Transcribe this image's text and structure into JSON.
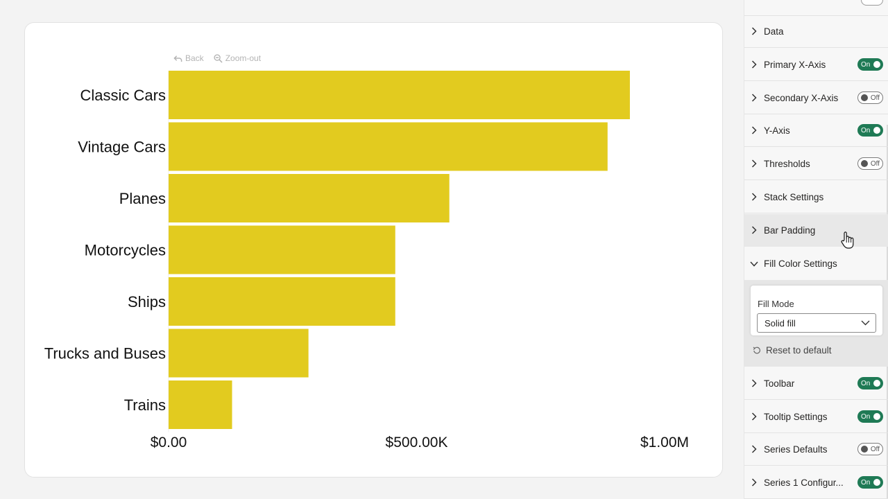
{
  "toolbar": {
    "back": "Back",
    "zoom_out": "Zoom-out"
  },
  "chart_data": {
    "type": "bar",
    "orientation": "horizontal",
    "categories": [
      "Classic Cars",
      "Vintage Cars",
      "Planes",
      "Motorcycles",
      "Ships",
      "Trucks and Buses",
      "Trains"
    ],
    "values": [
      930000,
      885000,
      566000,
      457000,
      457000,
      282000,
      128000
    ],
    "x_ticks": [
      "$0.00",
      "$500.00K",
      "$1.00M"
    ],
    "x_tick_values": [
      0,
      500000,
      1000000
    ],
    "xlim": [
      0,
      1000000
    ],
    "bar_color": "#e2cb1f",
    "title": "",
    "xlabel": "",
    "ylabel": "",
    "grid": false,
    "legend": "none"
  },
  "pane": {
    "items": [
      {
        "label": "Data",
        "toggle": null
      },
      {
        "label": "Primary X-Axis",
        "toggle": "On"
      },
      {
        "label": "Secondary X-Axis",
        "toggle": "Off"
      },
      {
        "label": "Y-Axis",
        "toggle": "On"
      },
      {
        "label": "Thresholds",
        "toggle": "Off"
      },
      {
        "label": "Stack Settings",
        "toggle": null
      },
      {
        "label": "Bar Padding",
        "toggle": null
      },
      {
        "label": "Fill Color Settings",
        "toggle": null
      },
      {
        "label": "Toolbar",
        "toggle": "On"
      },
      {
        "label": "Tooltip Settings",
        "toggle": "On"
      },
      {
        "label": "Series Defaults",
        "toggle": "Off"
      },
      {
        "label": "Series 1 Configur...",
        "toggle": "On"
      }
    ],
    "fill_mode_label": "Fill Mode",
    "fill_mode_value": "Solid fill",
    "reset_label": "Reset to default"
  },
  "colors": {
    "toggle_on": "#1f7a55",
    "bar": "#e2cb1f"
  }
}
